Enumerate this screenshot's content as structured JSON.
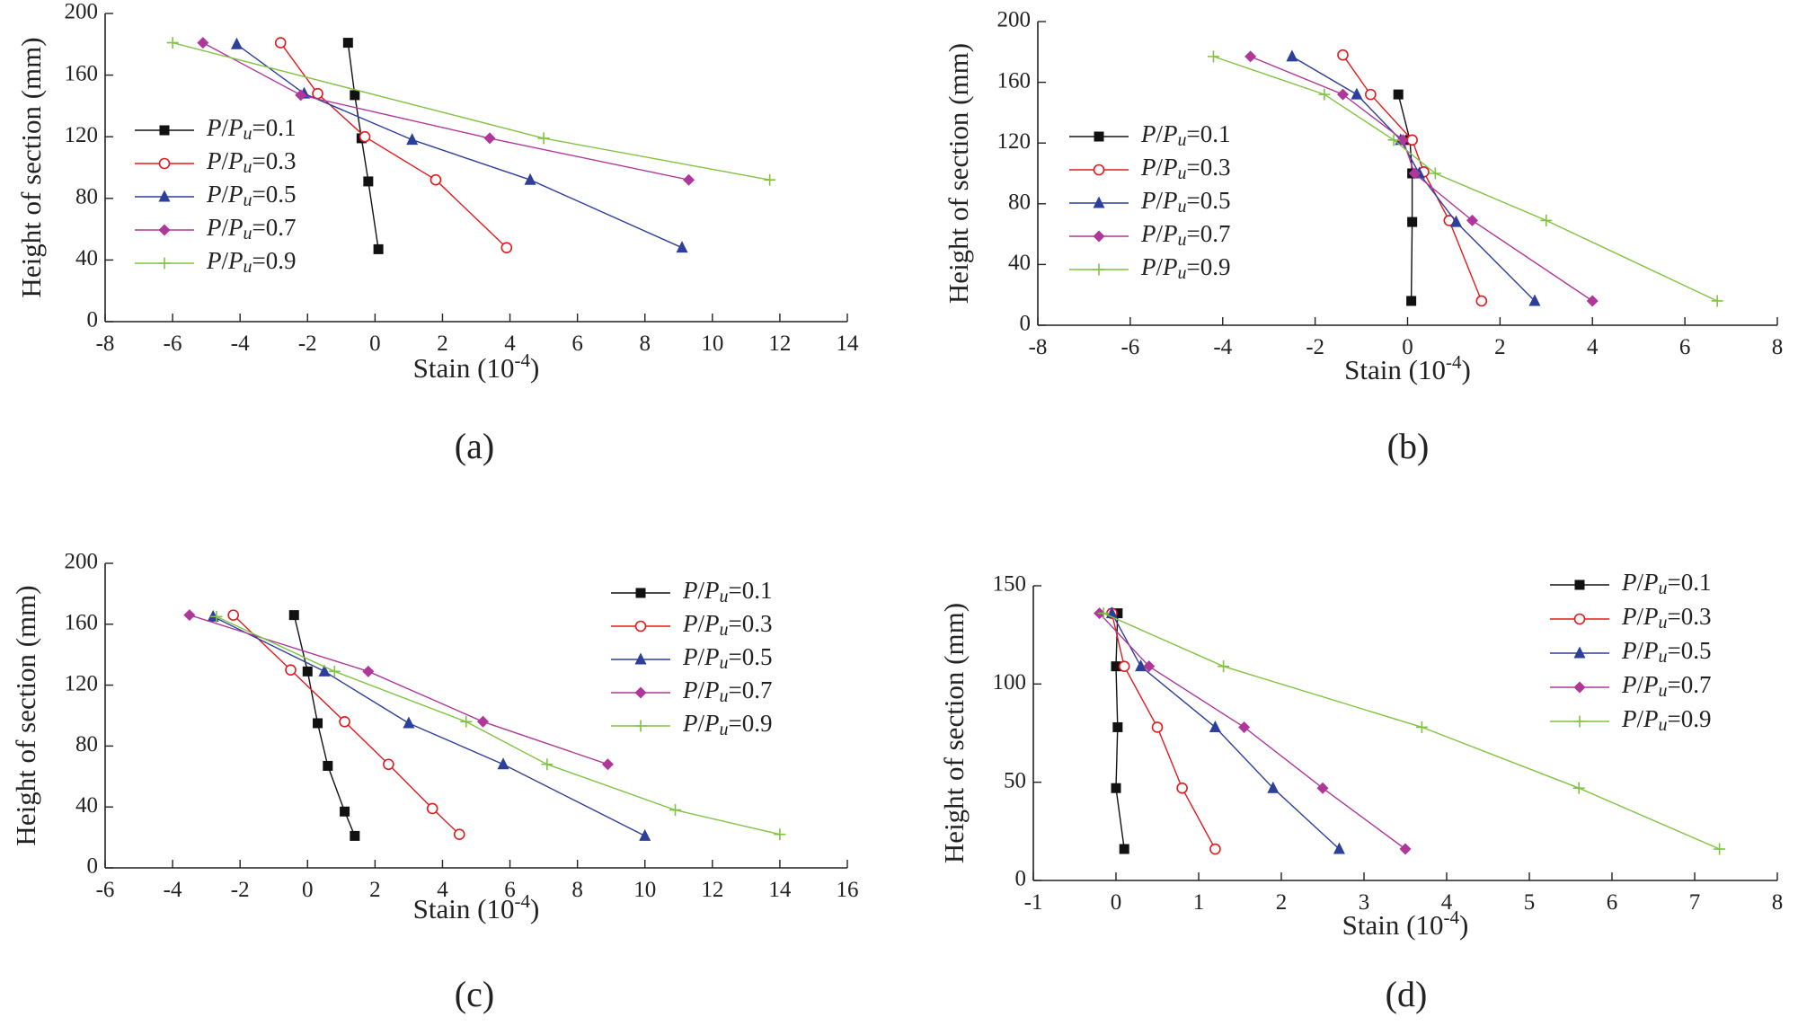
{
  "legend_title_parts": {
    "p": "P",
    "slash": "/",
    "pu": "P",
    "sub": "u"
  },
  "chart_data": [
    {
      "type": "line",
      "caption": "(a)",
      "xlabel": "Stain (10",
      "xlabel_exp": "-4",
      "xlabel_close": ")",
      "ylabel": "Height of section (mm)",
      "xlim": [
        -8,
        14
      ],
      "ylim": [
        0,
        200
      ],
      "xticks": [
        -8,
        -6,
        -4,
        -2,
        0,
        2,
        4,
        6,
        8,
        10,
        12,
        14
      ],
      "yticks": [
        0,
        40,
        80,
        120,
        160,
        200
      ],
      "legend_position": "left-middle",
      "series": [
        {
          "name": "0.1",
          "color": "#111111",
          "marker": "square",
          "points": [
            [
              -0.8,
              181
            ],
            [
              -0.6,
              147
            ],
            [
              -0.4,
              119
            ],
            [
              -0.2,
              91
            ],
            [
              0.1,
              47
            ]
          ]
        },
        {
          "name": "0.3",
          "color": "#e31a1c",
          "marker": "circle",
          "points": [
            [
              -2.8,
              181
            ],
            [
              -1.7,
              148
            ],
            [
              -0.3,
              120
            ],
            [
              1.8,
              92
            ],
            [
              3.9,
              48
            ]
          ]
        },
        {
          "name": "0.5",
          "color": "#2b3f9b",
          "marker": "triangle",
          "points": [
            [
              -4.1,
              180
            ],
            [
              -2.1,
              148
            ],
            [
              1.1,
              118
            ],
            [
              4.6,
              92
            ],
            [
              9.1,
              48
            ]
          ]
        },
        {
          "name": "0.7",
          "color": "#b0379a",
          "marker": "diamond",
          "points": [
            [
              -5.1,
              181
            ],
            [
              -2.2,
              147
            ],
            [
              3.4,
              119
            ],
            [
              9.3,
              92
            ]
          ]
        },
        {
          "name": "0.9",
          "color": "#80c341",
          "marker": "plus",
          "points": [
            [
              -6.0,
              181
            ],
            [
              5.0,
              119
            ],
            [
              11.7,
              92
            ]
          ]
        }
      ]
    },
    {
      "type": "line",
      "caption": "(b)",
      "xlabel": "Stain (10",
      "xlabel_exp": "-4",
      "xlabel_close": ")",
      "ylabel": "Height of section (mm)",
      "xlim": [
        -8,
        8
      ],
      "ylim": [
        0,
        200
      ],
      "xticks": [
        -8,
        -6,
        -4,
        -2,
        0,
        2,
        4,
        6,
        8
      ],
      "yticks": [
        0,
        40,
        80,
        120,
        160,
        200
      ],
      "legend_position": "left-middle",
      "series": [
        {
          "name": "0.1",
          "color": "#111111",
          "marker": "square",
          "points": [
            [
              -0.2,
              152
            ],
            [
              0.05,
              122
            ],
            [
              0.1,
              100
            ],
            [
              0.1,
              68
            ],
            [
              0.08,
              16
            ]
          ]
        },
        {
          "name": "0.3",
          "color": "#e31a1c",
          "marker": "circle",
          "points": [
            [
              -1.4,
              178
            ],
            [
              -0.8,
              152
            ],
            [
              0.1,
              122
            ],
            [
              0.35,
              101
            ],
            [
              0.9,
              69
            ],
            [
              1.6,
              16
            ]
          ]
        },
        {
          "name": "0.5",
          "color": "#2b3f9b",
          "marker": "triangle",
          "points": [
            [
              -2.5,
              177
            ],
            [
              -1.1,
              152
            ],
            [
              -0.15,
              122
            ],
            [
              0.25,
              100
            ],
            [
              1.05,
              68
            ],
            [
              2.75,
              16
            ]
          ]
        },
        {
          "name": "0.7",
          "color": "#b0379a",
          "marker": "diamond",
          "points": [
            [
              -3.4,
              177
            ],
            [
              -1.4,
              152
            ],
            [
              -0.1,
              122
            ],
            [
              0.15,
              100
            ],
            [
              1.4,
              69
            ],
            [
              4.0,
              16
            ]
          ]
        },
        {
          "name": "0.9",
          "color": "#80c341",
          "marker": "plus",
          "points": [
            [
              -4.2,
              177
            ],
            [
              -1.8,
              152
            ],
            [
              -0.3,
              122
            ],
            [
              0.6,
              100
            ],
            [
              3.0,
              69
            ],
            [
              6.7,
              16
            ]
          ]
        }
      ]
    },
    {
      "type": "line",
      "caption": "(c)",
      "xlabel": "Stain (10",
      "xlabel_exp": "-4",
      "xlabel_close": ")",
      "ylabel": "Height of section (mm)",
      "xlim": [
        -6,
        16
      ],
      "ylim": [
        0,
        200
      ],
      "xticks": [
        -6,
        -4,
        -2,
        0,
        2,
        4,
        6,
        8,
        10,
        12,
        14,
        16
      ],
      "yticks": [
        0,
        40,
        80,
        120,
        160,
        200
      ],
      "legend_position": "top-right",
      "series": [
        {
          "name": "0.1",
          "color": "#111111",
          "marker": "square",
          "points": [
            [
              -0.4,
              166
            ],
            [
              0.0,
              129
            ],
            [
              0.3,
              95
            ],
            [
              0.6,
              67
            ],
            [
              1.1,
              37
            ],
            [
              1.4,
              21
            ]
          ]
        },
        {
          "name": "0.3",
          "color": "#e31a1c",
          "marker": "circle",
          "points": [
            [
              -2.2,
              166
            ],
            [
              -0.5,
              130
            ],
            [
              1.1,
              96
            ],
            [
              2.4,
              68
            ],
            [
              3.7,
              39
            ],
            [
              4.5,
              22
            ]
          ]
        },
        {
          "name": "0.5",
          "color": "#2b3f9b",
          "marker": "triangle",
          "points": [
            [
              -2.8,
              165
            ],
            [
              0.5,
              129
            ],
            [
              3.0,
              95
            ],
            [
              5.8,
              68
            ],
            [
              10.0,
              21
            ]
          ]
        },
        {
          "name": "0.7",
          "color": "#b0379a",
          "marker": "diamond",
          "points": [
            [
              -3.5,
              166
            ],
            [
              1.8,
              129
            ],
            [
              5.2,
              96
            ],
            [
              8.9,
              68
            ]
          ]
        },
        {
          "name": "0.9",
          "color": "#80c341",
          "marker": "plus",
          "points": [
            [
              -2.7,
              165
            ],
            [
              0.8,
              129
            ],
            [
              4.7,
              96
            ],
            [
              7.1,
              68
            ],
            [
              10.9,
              38
            ],
            [
              14.0,
              22
            ]
          ]
        }
      ]
    },
    {
      "type": "line",
      "caption": "(d)",
      "xlabel": "Stain (10",
      "xlabel_exp": "-4",
      "xlabel_close": ")",
      "ylabel": "Height of section (mm)",
      "xlim": [
        -1,
        8
      ],
      "ylim": [
        0,
        150
      ],
      "xticks": [
        -1,
        0,
        1,
        2,
        3,
        4,
        5,
        6,
        7,
        8
      ],
      "yticks": [
        0,
        50,
        100,
        150
      ],
      "legend_position": "top-right",
      "series": [
        {
          "name": "0.1",
          "color": "#111111",
          "marker": "square",
          "points": [
            [
              0.02,
              136
            ],
            [
              0.0,
              109
            ],
            [
              0.02,
              78
            ],
            [
              0.0,
              47
            ],
            [
              0.1,
              16
            ]
          ]
        },
        {
          "name": "0.3",
          "color": "#e31a1c",
          "marker": "circle",
          "points": [
            [
              -0.05,
              136
            ],
            [
              0.1,
              109
            ],
            [
              0.5,
              78
            ],
            [
              0.8,
              47
            ],
            [
              1.2,
              16
            ]
          ]
        },
        {
          "name": "0.5",
          "color": "#2b3f9b",
          "marker": "triangle",
          "points": [
            [
              -0.05,
              136
            ],
            [
              0.3,
              109
            ],
            [
              1.2,
              78
            ],
            [
              1.9,
              47
            ],
            [
              2.7,
              16
            ]
          ]
        },
        {
          "name": "0.7",
          "color": "#b0379a",
          "marker": "diamond",
          "points": [
            [
              -0.2,
              136
            ],
            [
              0.4,
              109
            ],
            [
              1.55,
              78
            ],
            [
              2.5,
              47
            ],
            [
              3.5,
              16
            ]
          ]
        },
        {
          "name": "0.9",
          "color": "#80c341",
          "marker": "plus",
          "points": [
            [
              -0.15,
              136
            ],
            [
              1.3,
              109
            ],
            [
              3.7,
              78
            ],
            [
              5.6,
              47
            ],
            [
              7.3,
              16
            ]
          ]
        }
      ]
    }
  ]
}
